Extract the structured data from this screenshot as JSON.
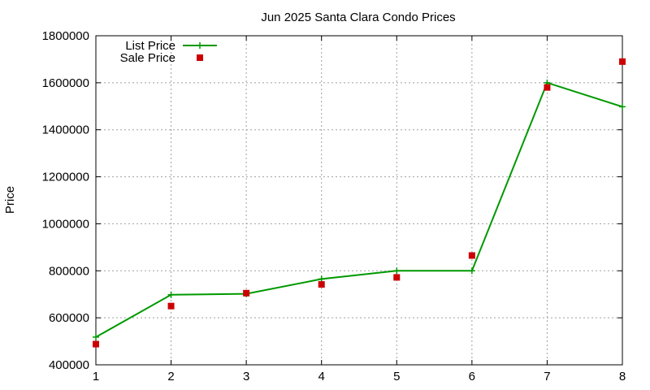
{
  "chart_data": {
    "type": "line",
    "title": "Jun 2025 Santa Clara Condo Prices",
    "xlabel": "",
    "ylabel": "Price",
    "x": [
      1,
      2,
      3,
      4,
      5,
      6,
      7,
      8
    ],
    "xticks": [
      "1",
      "2",
      "3",
      "4",
      "5",
      "6",
      "7",
      "8"
    ],
    "xlim": [
      1,
      8
    ],
    "ylim": [
      400000,
      1800000
    ],
    "yticks": [
      "400000",
      "600000",
      "800000",
      "1000000",
      "1200000",
      "1400000",
      "1600000",
      "1800000"
    ],
    "grid": true,
    "legend": "top-left",
    "series": [
      {
        "name": "List Price",
        "style": "line+cross",
        "color": "#009900",
        "values": [
          518000,
          698000,
          702000,
          765000,
          800000,
          800000,
          1600000,
          1498000
        ]
      },
      {
        "name": "Sale Price",
        "style": "square",
        "color": "#cc0000",
        "values": [
          488000,
          650000,
          705000,
          742000,
          772000,
          865000,
          1580000,
          1690000
        ]
      }
    ]
  }
}
